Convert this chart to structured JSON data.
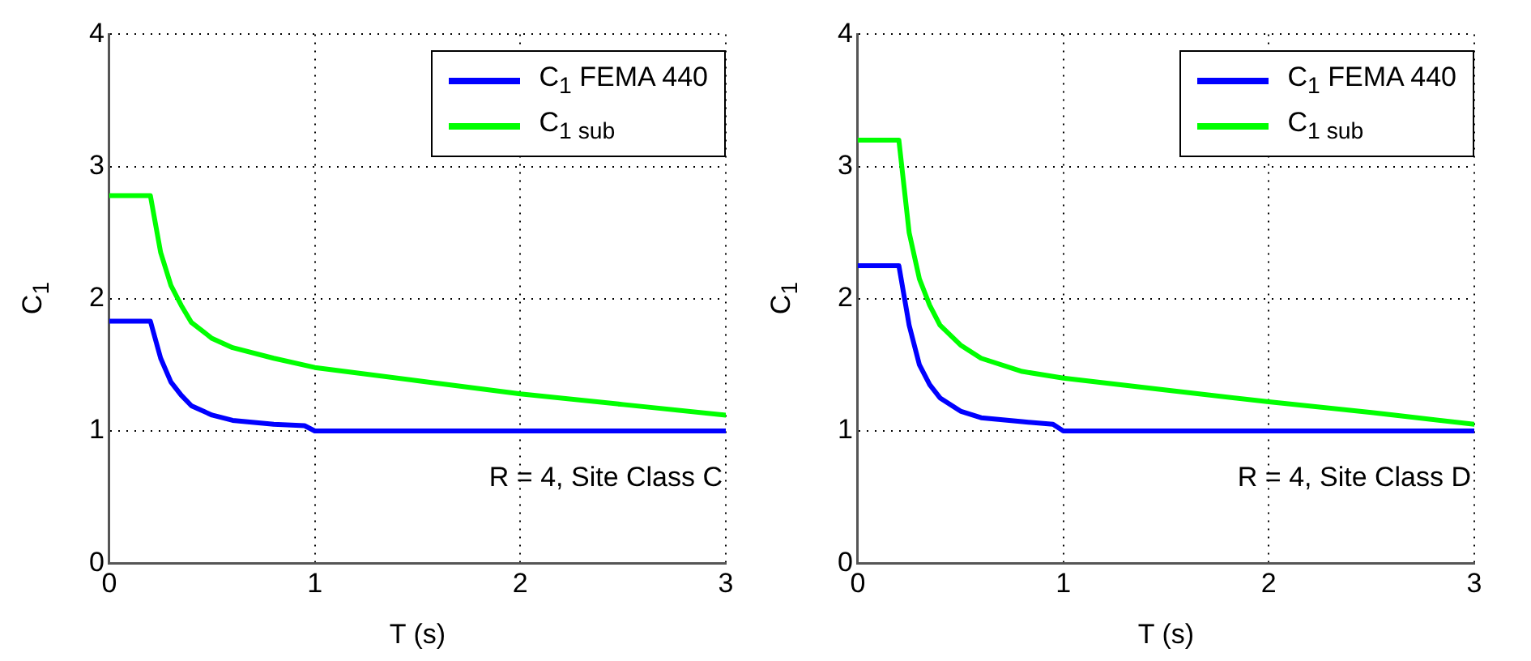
{
  "chart_data": [
    {
      "type": "line",
      "xlabel": "T (s)",
      "ylabel": "C$_{1}$",
      "xlim": [
        0,
        3
      ],
      "xticks": [
        0,
        1,
        2,
        3
      ],
      "ylim": [
        0,
        4
      ],
      "yticks": [
        0,
        1,
        2,
        3,
        4
      ],
      "grid": true,
      "legend": "top right",
      "marker": "none",
      "line_style": "solid",
      "annotations": [
        "R = 4, Site Class C"
      ],
      "series": [
        {
          "name": "C$_{1}$ FEMA 440",
          "color": "#0000ff",
          "x": [
            0,
            0.2,
            0.25,
            0.3,
            0.35,
            0.4,
            0.5,
            0.6,
            0.8,
            0.95,
            1,
            1.5,
            2,
            2.5,
            3
          ],
          "values": [
            1.83,
            1.83,
            1.55,
            1.37,
            1.27,
            1.19,
            1.12,
            1.08,
            1.05,
            1.04,
            1,
            1,
            1,
            1,
            1
          ]
        },
        {
          "name": "C$_{1 sub}$",
          "color": "#00ff00",
          "x": [
            0,
            0.2,
            0.25,
            0.3,
            0.35,
            0.4,
            0.5,
            0.6,
            0.8,
            1,
            1.5,
            2,
            2.5,
            3
          ],
          "values": [
            2.78,
            2.78,
            2.35,
            2.1,
            1.95,
            1.82,
            1.7,
            1.63,
            1.55,
            1.48,
            1.38,
            1.28,
            1.2,
            1.12
          ]
        }
      ]
    },
    {
      "type": "line",
      "xlabel": "T (s)",
      "ylabel": "C$_{1}$",
      "xlim": [
        0,
        3
      ],
      "xticks": [
        0,
        1,
        2,
        3
      ],
      "ylim": [
        0,
        4
      ],
      "yticks": [
        0,
        1,
        2,
        3,
        4
      ],
      "grid": true,
      "legend": "top right",
      "marker": "none",
      "line_style": "solid",
      "annotations": [
        "R = 4, Site Class D"
      ],
      "series": [
        {
          "name": "C$_{1}$ FEMA 440",
          "color": "#0000ff",
          "x": [
            0,
            0.2,
            0.25,
            0.3,
            0.35,
            0.4,
            0.5,
            0.6,
            0.8,
            0.95,
            1,
            1.5,
            2,
            2.5,
            3
          ],
          "values": [
            2.25,
            2.25,
            1.8,
            1.5,
            1.35,
            1.25,
            1.15,
            1.1,
            1.07,
            1.05,
            1,
            1,
            1,
            1,
            1
          ]
        },
        {
          "name": "C$_{1 sub}$",
          "color": "#00ff00",
          "x": [
            0,
            0.2,
            0.25,
            0.3,
            0.35,
            0.4,
            0.5,
            0.6,
            0.8,
            1,
            1.5,
            2,
            2.5,
            3
          ],
          "values": [
            3.2,
            3.2,
            2.5,
            2.15,
            1.95,
            1.8,
            1.65,
            1.55,
            1.45,
            1.4,
            1.31,
            1.22,
            1.14,
            1.05
          ]
        }
      ]
    }
  ]
}
